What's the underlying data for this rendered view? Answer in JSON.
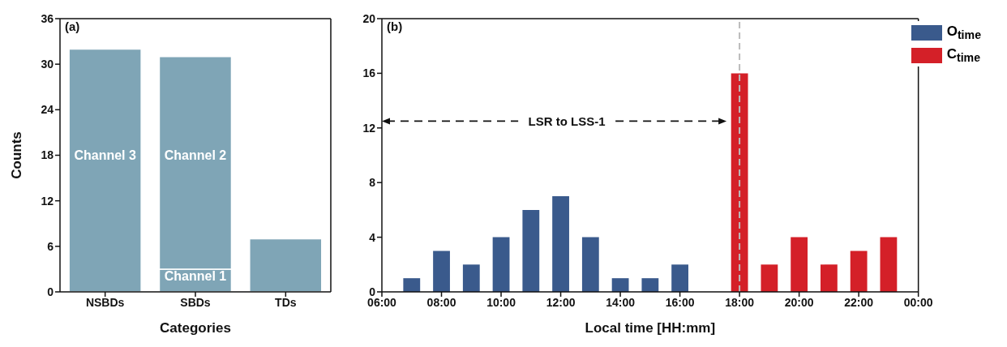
{
  "chart_data": [
    {
      "type": "bar",
      "title": "(a)",
      "xlabel": "Categories",
      "ylabel": "Counts",
      "categories": [
        "NSBDs",
        "SBDs",
        "TDs"
      ],
      "stacked": true,
      "series": [
        {
          "color": "#7fa5b6",
          "values": [
            32,
            3,
            7
          ]
        },
        {
          "color": "#7fa5b6",
          "values": [
            null,
            28,
            null
          ]
        }
      ],
      "ylim": [
        0,
        36
      ],
      "yticks": [
        0,
        6,
        12,
        18,
        24,
        30,
        36
      ],
      "annotations": [
        "Channel 3",
        "Channel 2",
        "Channel 1"
      ]
    },
    {
      "type": "bar",
      "title": "(b)",
      "xlabel": "Local time [HH:mm]",
      "series": [
        {
          "name": "O$_{time}$",
          "color": "#3a5a8c",
          "x": [
            7,
            8,
            9,
            10,
            11,
            12,
            13,
            14,
            15,
            16
          ],
          "values": [
            1,
            3,
            2,
            4,
            6,
            7,
            4,
            1,
            1,
            2
          ]
        },
        {
          "name": "C$_{time}$",
          "color": "#d42028",
          "x": [
            18,
            19,
            20,
            21,
            22,
            23
          ],
          "values": [
            16,
            2,
            4,
            2,
            3,
            4
          ]
        }
      ],
      "xlim": [
        6,
        24
      ],
      "xticks": [
        {
          "value": 6,
          "label": "06:00"
        },
        {
          "value": 8,
          "label": "08:00"
        },
        {
          "value": 10,
          "label": "10:00"
        },
        {
          "value": 12,
          "label": "12:00"
        },
        {
          "value": 14,
          "label": "14:00"
        },
        {
          "value": 16,
          "label": "16:00"
        },
        {
          "value": 18,
          "label": "18:00"
        },
        {
          "value": 20,
          "label": "20:00"
        },
        {
          "value": 22,
          "label": "22:00"
        },
        {
          "value": 24,
          "label": "00:00"
        }
      ],
      "ylim": [
        0,
        20
      ],
      "yticks": [
        0,
        4,
        8,
        12,
        16,
        20
      ],
      "legend": "top right",
      "ref_lines": [
        {
          "axis": "x",
          "value": 18,
          "color": "#bbbbbb",
          "line_style": "dashed"
        }
      ],
      "annotations": [
        "LSR to LSS-1"
      ]
    }
  ]
}
